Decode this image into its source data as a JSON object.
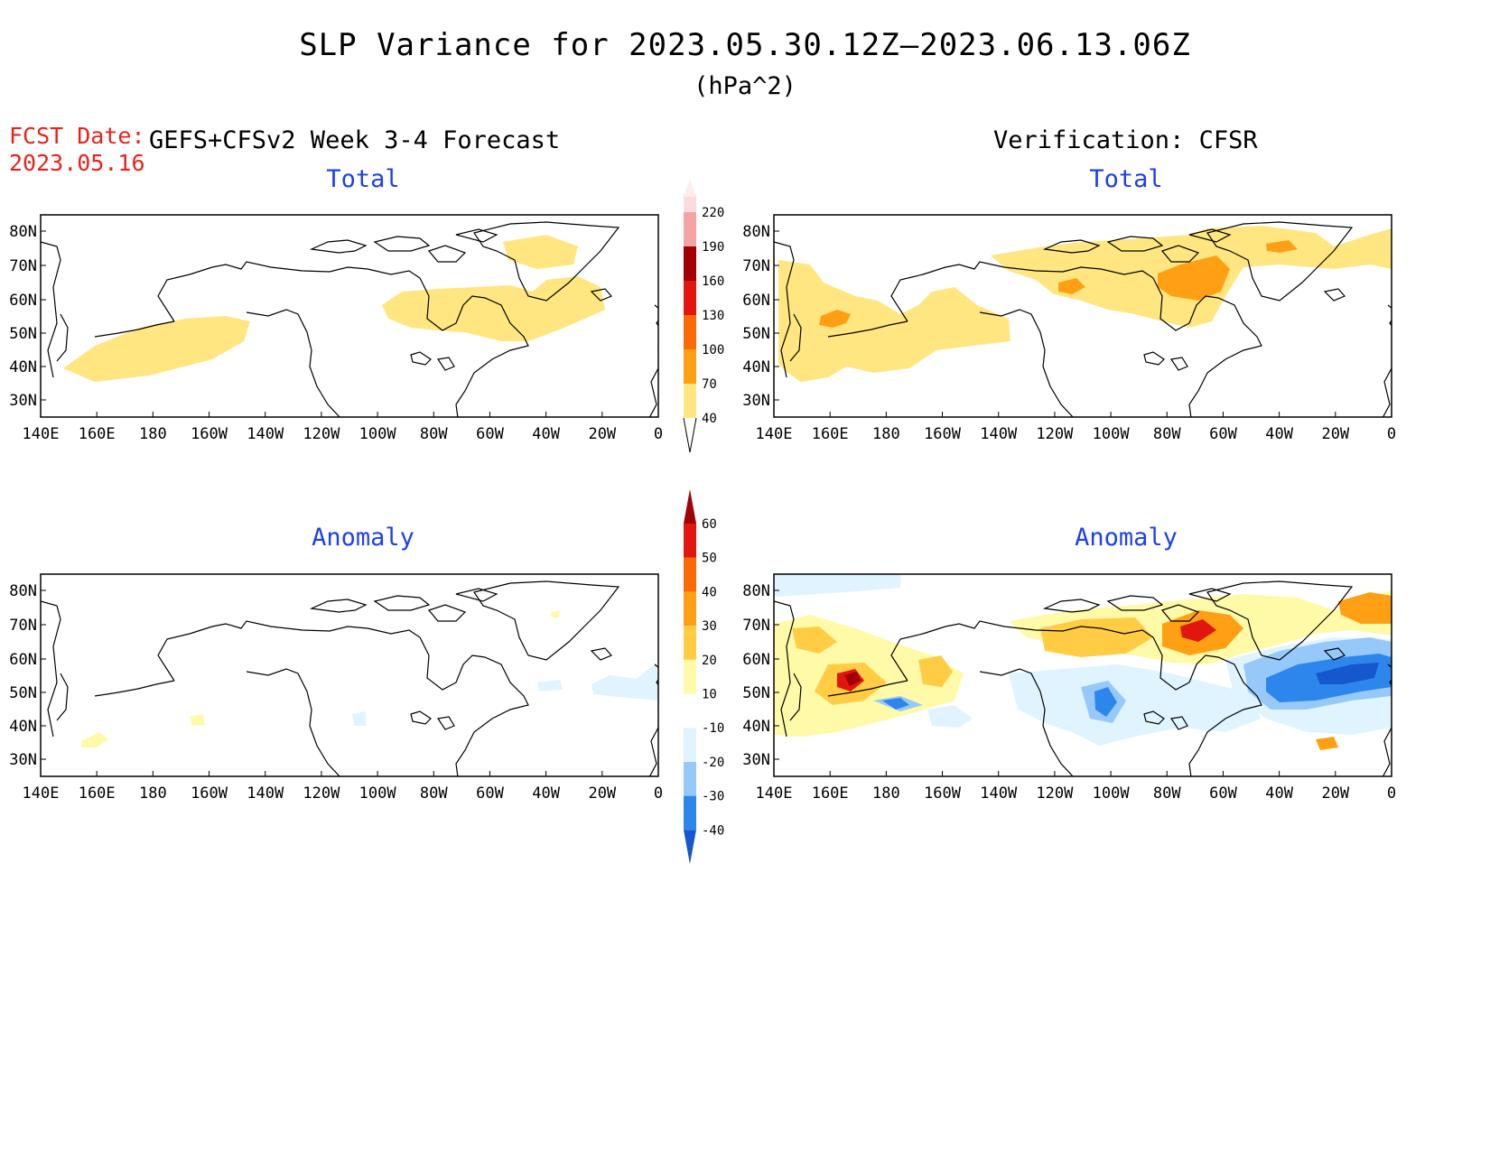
{
  "title": "SLP Variance for 2023.05.30.12Z–2023.06.13.06Z",
  "units": "(hPa^2)",
  "fcst_date_label": "FCST Date:",
  "fcst_date": "2023.05.16",
  "forecast_header": "GEFS+CFSv2 Week 3-4 Forecast",
  "verification_header": "Verification: CFSR",
  "panel_titles": {
    "forecast_total": "Total",
    "forecast_anomaly": "Anomaly",
    "verification_total": "Total",
    "verification_anomaly": "Anomaly"
  },
  "map_axes": {
    "lon_labels": [
      "140E",
      "160E",
      "180",
      "160W",
      "140W",
      "120W",
      "100W",
      "80W",
      "60W",
      "40W",
      "20W",
      "0"
    ],
    "lat_labels": [
      "80N",
      "70N",
      "60N",
      "50N",
      "40N",
      "30N"
    ]
  },
  "colorbars": {
    "total": {
      "levels": [
        "40",
        "70",
        "100",
        "130",
        "160",
        "190",
        "220"
      ],
      "colors": [
        "#ffe680",
        "#ff9f13",
        "#fa6a06",
        "#e1160e",
        "#a10005",
        "#f3a4a4",
        "#fbdcdc"
      ]
    },
    "anomaly": {
      "levels": [
        "-40",
        "-30",
        "-20",
        "-10",
        "10",
        "20",
        "30",
        "40",
        "50",
        "60"
      ],
      "colors": [
        "#1557cc",
        "#2d86ec",
        "#96c9fa",
        "#dff4ff",
        "#ffffff",
        "#fffaa8",
        "#ffcc44",
        "#ff9f13",
        "#fa6a06",
        "#e1160e",
        "#a10005"
      ]
    }
  },
  "palette": {
    "title_blue": "#1c3ff0",
    "fcst_red": "#e8221b",
    "total_light": "#ffe680",
    "total_orange": "#ff9f13",
    "anom_pos_light": "#fffaa8",
    "anom_pos_mid": "#ffcc44",
    "anom_pos_orange": "#ff9f13",
    "anom_pos_deep": "#fa6a06",
    "anom_pos_red": "#e1160e",
    "anom_pos_dark": "#a10005",
    "anom_neg_light": "#dff4ff",
    "anom_neg_mid": "#96c9fa",
    "anom_neg_deep": "#2d86ec",
    "anom_neg_dark": "#1557cc"
  }
}
